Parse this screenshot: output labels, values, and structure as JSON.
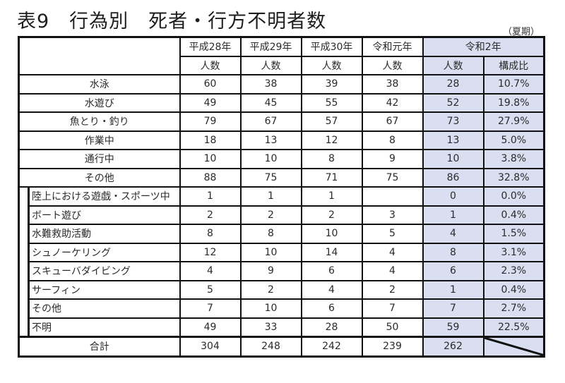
{
  "title": "表9　行為別　死者・行方不明者数",
  "note": "（夏期）",
  "header": {
    "years": [
      "平成28年",
      "平成29年",
      "平成30年",
      "令和元年"
    ],
    "highlight_year": "令和2年",
    "count_label": "人数",
    "ratio_label": "構成比"
  },
  "main_rows": [
    {
      "label": "水泳",
      "h28": "60",
      "h29": "38",
      "h30": "39",
      "r1": "38",
      "r2": "28",
      "ratio": "10.7%"
    },
    {
      "label": "水遊び",
      "h28": "49",
      "h29": "45",
      "h30": "55",
      "r1": "42",
      "r2": "52",
      "ratio": "19.8%"
    },
    {
      "label": "魚とり・釣り",
      "h28": "79",
      "h29": "67",
      "h30": "57",
      "r1": "67",
      "r2": "73",
      "ratio": "27.9%"
    },
    {
      "label": "作業中",
      "h28": "18",
      "h29": "13",
      "h30": "12",
      "r1": "8",
      "r2": "13",
      "ratio": "5.0%"
    },
    {
      "label": "通行中",
      "h28": "10",
      "h29": "10",
      "h30": "8",
      "r1": "9",
      "r2": "10",
      "ratio": "3.8%"
    },
    {
      "label": "その他",
      "h28": "88",
      "h29": "75",
      "h30": "71",
      "r1": "75",
      "r2": "86",
      "ratio": "32.8%"
    }
  ],
  "sub_rows": [
    {
      "label": "陸上における遊戯・スポーツ中",
      "h28": "1",
      "h29": "1",
      "h30": "1",
      "r1": "",
      "r2": "0",
      "ratio": "0.0%"
    },
    {
      "label": "ボート遊び",
      "h28": "2",
      "h29": "2",
      "h30": "2",
      "r1": "3",
      "r2": "1",
      "ratio": "0.4%"
    },
    {
      "label": "水難救助活動",
      "h28": "8",
      "h29": "8",
      "h30": "10",
      "r1": "5",
      "r2": "4",
      "ratio": "1.5%"
    },
    {
      "label": "シュノーケリング",
      "h28": "12",
      "h29": "10",
      "h30": "14",
      "r1": "4",
      "r2": "8",
      "ratio": "3.1%"
    },
    {
      "label": "スキューバダイビング",
      "h28": "4",
      "h29": "9",
      "h30": "6",
      "r1": "4",
      "r2": "6",
      "ratio": "2.3%"
    },
    {
      "label": "サーフィン",
      "h28": "5",
      "h29": "2",
      "h30": "4",
      "r1": "2",
      "r2": "1",
      "ratio": "0.4%"
    },
    {
      "label": "その他",
      "h28": "7",
      "h29": "10",
      "h30": "6",
      "r1": "7",
      "r2": "7",
      "ratio": "2.7%"
    },
    {
      "label": "不明",
      "h28": "49",
      "h29": "33",
      "h30": "28",
      "r1": "50",
      "r2": "59",
      "ratio": "22.5%"
    }
  ],
  "total": {
    "label": "合計",
    "h28": "304",
    "h29": "248",
    "h30": "242",
    "r1": "239",
    "r2": "262",
    "ratio": ""
  },
  "colors": {
    "highlight_bg": "#d9dff0",
    "border": "#111111"
  }
}
